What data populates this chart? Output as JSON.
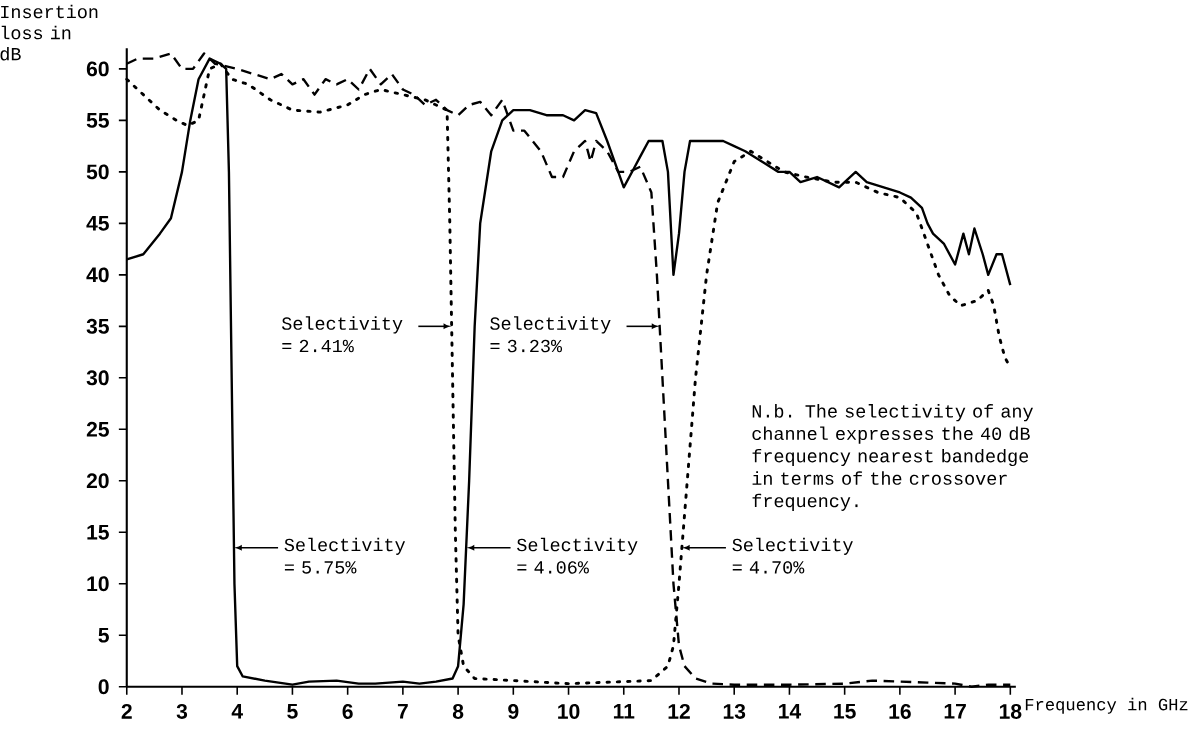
{
  "chart_data": {
    "type": "line",
    "xlabel": "Frequency in GHz",
    "ylabel": "Insertion loss in dB",
    "xlim": [
      2,
      18.1
    ],
    "ylim": [
      0,
      62
    ],
    "xticks": [
      2,
      3,
      4,
      5,
      6,
      7,
      8,
      9,
      10,
      11,
      12,
      13,
      14,
      15,
      16,
      17,
      18
    ],
    "yticks": [
      0,
      5,
      10,
      15,
      20,
      25,
      30,
      35,
      40,
      45,
      50,
      55,
      60
    ],
    "grid": false,
    "marker": "none",
    "series": [
      {
        "color": "#000000",
        "line_style": "solid",
        "x": [
          2,
          2.3,
          2.6,
          2.8,
          3.0,
          3.15,
          3.3,
          3.5,
          3.7,
          3.8,
          3.85,
          3.9,
          3.95,
          4.0,
          4.1,
          4.5,
          5,
          5.3,
          5.8,
          6.2,
          6.5,
          7,
          7.3,
          7.6,
          7.9,
          8.0,
          8.1,
          8.2,
          8.3,
          8.4,
          8.6,
          8.8,
          9.0,
          9.3,
          9.6,
          9.9,
          10.1,
          10.3,
          10.5,
          10.7,
          10.9,
          11.0,
          11.2,
          11.3,
          11.45,
          11.7,
          11.8,
          11.9,
          12.0,
          12.1,
          12.2,
          12.5,
          12.8,
          13,
          13.2,
          13.5,
          13.8,
          14,
          14.2,
          14.5,
          14.7,
          14.9,
          15,
          15.2,
          15.4,
          15.7,
          16,
          16.2,
          16.4,
          16.5,
          16.6,
          16.8,
          17,
          17.15,
          17.25,
          17.35,
          17.5,
          17.6,
          17.75,
          17.85,
          17.9,
          18
        ],
        "values": [
          41.5,
          42,
          44,
          45.5,
          50,
          55,
          59,
          61,
          60.5,
          60,
          50,
          30,
          10,
          2,
          1,
          0.6,
          0.2,
          0.5,
          0.6,
          0.3,
          0.3,
          0.5,
          0.3,
          0.5,
          0.8,
          2,
          8,
          20,
          35,
          45,
          52,
          55,
          56,
          56,
          55.5,
          55.5,
          55,
          56,
          55.7,
          53,
          50,
          48.5,
          50.5,
          51.5,
          53,
          53,
          50,
          40,
          44,
          50,
          53,
          53,
          53,
          52.5,
          52,
          51,
          50,
          50,
          49,
          49.5,
          49,
          48.5,
          49,
          50,
          49,
          48.5,
          48,
          47.5,
          46.5,
          45,
          44,
          43,
          41,
          44,
          42,
          44.5,
          42,
          40,
          42,
          42,
          41,
          39
        ]
      },
      {
        "color": "#000000",
        "line_style": "dashed",
        "x": [
          2,
          2.2,
          2.5,
          2.8,
          3.0,
          3.2,
          3.4,
          3.6,
          4.0,
          4.3,
          4.6,
          4.8,
          5.0,
          5.2,
          5.4,
          5.6,
          5.8,
          6.0,
          6.2,
          6.4,
          6.6,
          6.8,
          7.0,
          7.2,
          7.4,
          7.6,
          7.8,
          8.0,
          8.2,
          8.4,
          8.6,
          8.8,
          9.0,
          9.2,
          9.5,
          9.7,
          9.9,
          10.1,
          10.3,
          10.4,
          10.5,
          10.7,
          10.9,
          11.1,
          11.3,
          11.5,
          11.6,
          11.7,
          11.8,
          11.9,
          12.0,
          12.1,
          12.3,
          12.6,
          13,
          14,
          15,
          15.5,
          16,
          16.5,
          17,
          17.3,
          17.6,
          18
        ],
        "values": [
          60.5,
          61,
          61,
          61.5,
          60,
          60,
          61.5,
          60.5,
          60,
          59.5,
          59,
          59.5,
          58.5,
          59,
          57.5,
          59,
          58.5,
          59,
          58,
          60,
          58.5,
          59.5,
          58,
          57.5,
          56.5,
          57,
          56,
          55.5,
          56.5,
          56.8,
          55.5,
          57,
          54,
          54,
          52,
          49.5,
          49.5,
          52,
          53,
          51,
          53,
          52,
          50,
          50,
          50.5,
          48,
          40,
          30,
          20,
          10,
          4,
          2,
          0.8,
          0.3,
          0.2,
          0.2,
          0.3,
          0.6,
          0.5,
          0.4,
          0.3,
          0,
          0.2,
          0.2
        ]
      },
      {
        "color": "#000000",
        "line_style": "dotted",
        "x": [
          2,
          2.3,
          2.6,
          2.9,
          3.1,
          3.3,
          3.5,
          3.7,
          3.9,
          4.2,
          4.6,
          5,
          5.5,
          6,
          6.3,
          6.6,
          7,
          7.4,
          7.8,
          7.85,
          7.9,
          7.95,
          8.0,
          8.1,
          8.3,
          9,
          10,
          11,
          11.5,
          11.8,
          11.9,
          12.0,
          12.15,
          12.3,
          12.5,
          12.7,
          13.0,
          13.3,
          13.6,
          13.9,
          14.3,
          14.8,
          15.2,
          15.6,
          16,
          16.3,
          16.5,
          16.7,
          16.9,
          17.1,
          17.4,
          17.6,
          17.7,
          17.8,
          17.9,
          18
        ],
        "values": [
          59,
          57.5,
          56,
          55,
          54.5,
          55,
          60,
          60.5,
          59,
          58.5,
          57,
          56,
          55.8,
          56.5,
          57.5,
          58,
          57.5,
          57,
          56,
          45,
          30,
          15,
          5,
          2,
          0.8,
          0.6,
          0.3,
          0.5,
          0.6,
          2,
          4,
          10,
          20,
          30,
          40,
          47,
          51,
          52,
          51,
          50,
          49.5,
          49,
          49,
          48,
          47.5,
          46,
          43,
          40,
          38,
          37,
          37.5,
          38.5,
          37,
          34,
          32,
          31
        ]
      }
    ],
    "annotations": [
      {
        "text": "Selectivity = 5.75%",
        "x": 3.94,
        "y": 13.5
      },
      {
        "text": "Selectivity = 2.41%",
        "x": 7.88,
        "y": 35
      },
      {
        "text": "Selectivity = 3.23%",
        "x": 11.65,
        "y": 35
      },
      {
        "text": "Selectivity = 4.06%",
        "x": 8.15,
        "y": 13.5
      },
      {
        "text": "Selectivity = 4.70%",
        "x": 12.05,
        "y": 13.5
      },
      "N.b. The selectivity of any channel expresses the 40 dB frequency nearest bandedge in terms of the crossover frequency."
    ]
  }
}
